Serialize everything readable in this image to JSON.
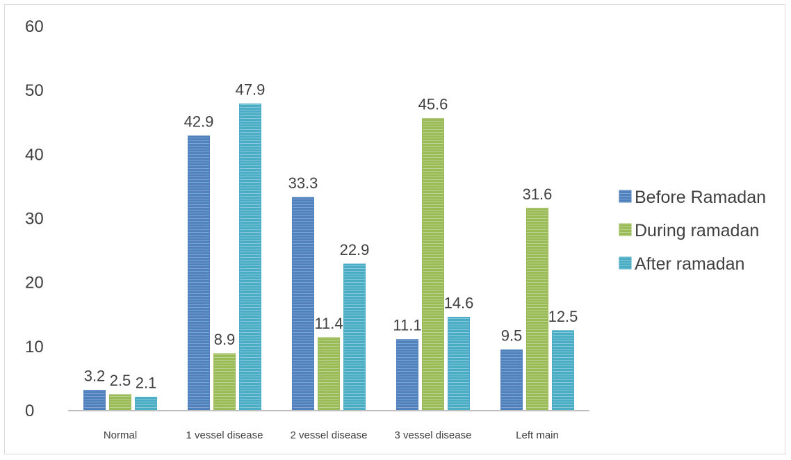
{
  "chart_data": {
    "type": "bar",
    "categories": [
      "Normal",
      "1 vessel disease",
      "2 vessel disease",
      "3 vessel disease",
      "Left main"
    ],
    "series": [
      {
        "name": "Before Ramadan",
        "values": [
          3.2,
          42.9,
          33.3,
          11.1,
          9.5
        ],
        "color": "#4f81bd"
      },
      {
        "name": "During ramadan",
        "values": [
          2.5,
          8.9,
          11.4,
          45.6,
          31.6
        ],
        "color": "#9bbb59"
      },
      {
        "name": "After ramadan",
        "values": [
          2.1,
          47.9,
          22.9,
          14.6,
          12.5
        ],
        "color": "#4bacc6"
      }
    ],
    "data_labels": [
      [
        "3.2",
        "42.9",
        "33.3",
        "11.1",
        "9.5"
      ],
      [
        "2.5",
        "8.9",
        "11.4",
        "45.6",
        "31.6"
      ],
      [
        "2.1",
        "47.9",
        "22.9",
        "14.6",
        "12.5"
      ]
    ],
    "y_ticks": [
      "0",
      "10",
      "20",
      "30",
      "40",
      "50",
      "60"
    ],
    "ylim": [
      0,
      60
    ],
    "grid": false,
    "legend_position": "right",
    "title": "",
    "xlabel": "",
    "ylabel": ""
  }
}
